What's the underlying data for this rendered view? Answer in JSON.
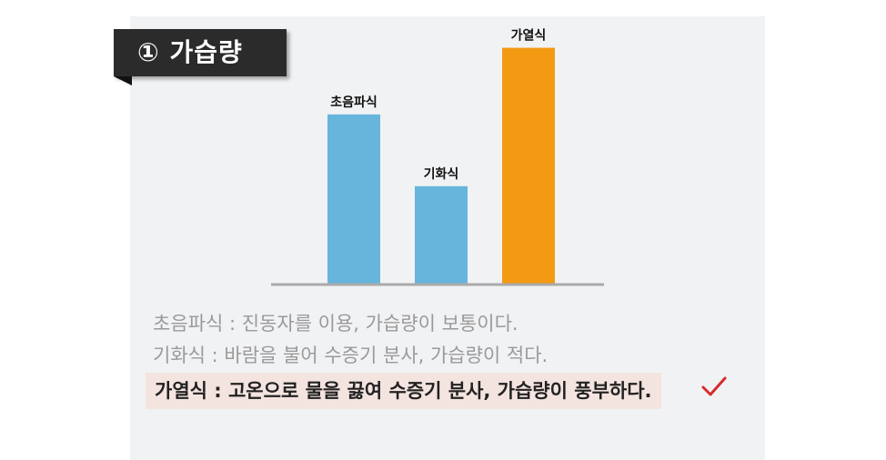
{
  "title": "① 가습량",
  "chart_data": {
    "type": "bar",
    "categories": [
      "초음파식",
      "기화식",
      "가열식"
    ],
    "values": [
      3.3,
      1.9,
      4.6
    ],
    "ylim": [
      0,
      5
    ],
    "grid": false,
    "colors": [
      "#67b5dd",
      "#67b5dd",
      "#f39a12"
    ]
  },
  "descriptions": [
    "초음파식 : 진동자를 이용, 가습량이 보통이다.",
    "기화식 : 바람을 불어 수증기 분사, 가습량이 적다."
  ],
  "highlight": "가열식 : 고온으로 물을 끓여 수증기 분사, 가습량이 풍부하다.",
  "colors": {
    "check": "#d62b2b",
    "axis": "#aaaaaa"
  }
}
